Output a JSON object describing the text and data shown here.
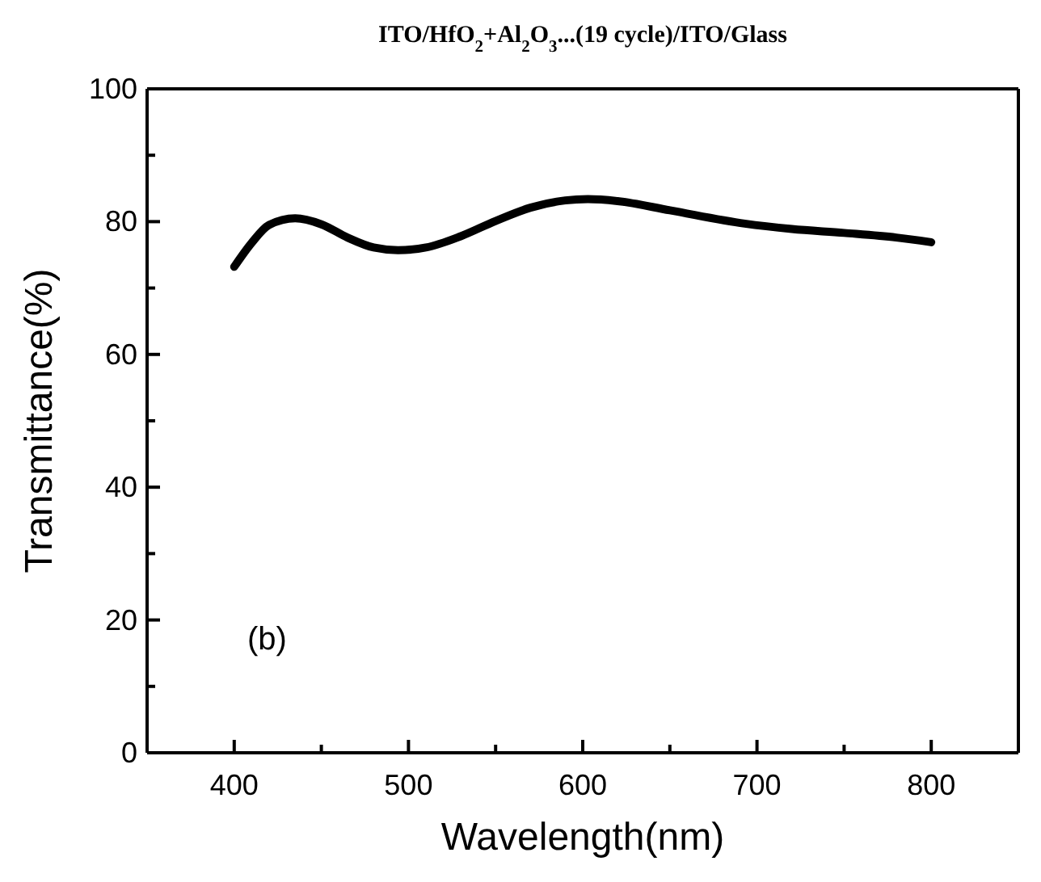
{
  "chart_data": {
    "type": "line",
    "title": "ITO/HfO$_{2}$+Al$_{2}$O$_{3}$...(19 cycle)/ITO/Glass",
    "xlabel": "Wavelength(nm)",
    "ylabel": "Transmittance(%)",
    "annotations": [
      "(b)"
    ],
    "x": [
      400,
      410,
      420,
      435,
      450,
      465,
      480,
      494,
      510,
      530,
      550,
      570,
      590,
      603,
      620,
      650,
      693,
      720,
      750,
      780,
      800
    ],
    "series": [
      {
        "color": "#000000",
        "values": [
          73.2,
          76.8,
          79.5,
          80.5,
          79.6,
          77.6,
          76.1,
          75.7,
          76.1,
          77.8,
          80.1,
          82.1,
          83.2,
          83.4,
          83.1,
          81.7,
          79.7,
          78.9,
          78.3,
          77.6,
          76.9
        ]
      }
    ],
    "xlim": [
      350,
      850
    ],
    "ylim": [
      0,
      100
    ],
    "xticks": [
      400,
      500,
      600,
      700,
      800
    ],
    "yticks": [
      0,
      20,
      40,
      60,
      80,
      100
    ],
    "grid": false,
    "marker": "none",
    "line_style": "solid"
  }
}
